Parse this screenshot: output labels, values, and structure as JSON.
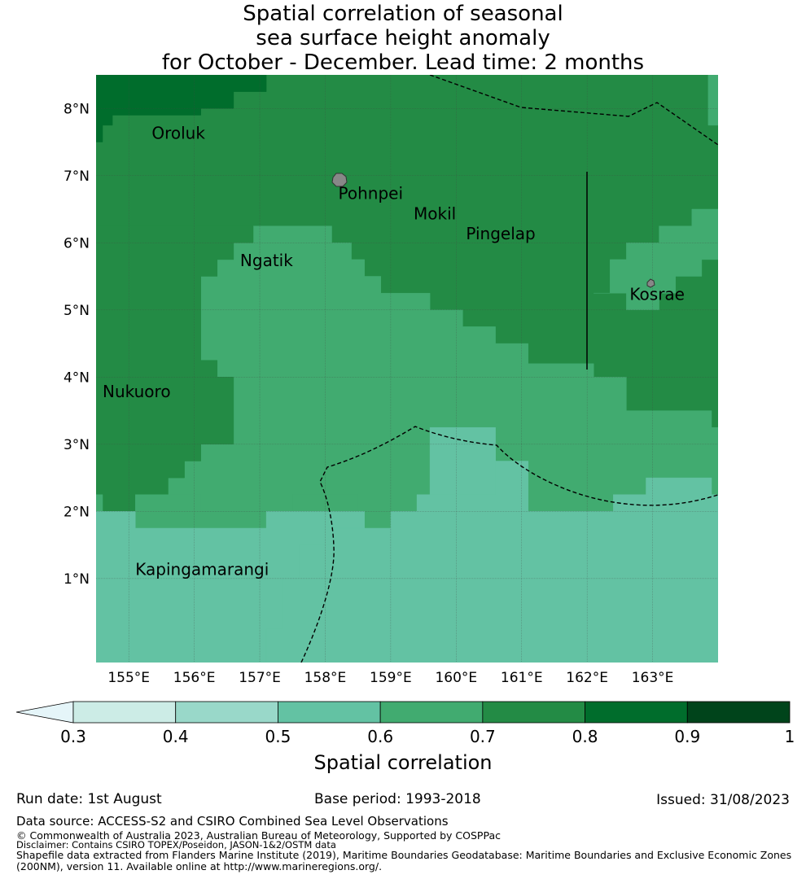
{
  "title": {
    "line1": "Spatial correlation of seasonal",
    "line2": "sea surface height anomaly",
    "line3": "for October - December. Lead time: 2 months"
  },
  "map": {
    "lon_range": [
      154.5,
      164.0
    ],
    "lat_range": [
      -0.25,
      8.5
    ],
    "cell_deg": 0.25,
    "lon_ticks": [
      "155°E",
      "156°E",
      "157°E",
      "158°E",
      "159°E",
      "160°E",
      "161°E",
      "162°E",
      "163°E"
    ],
    "lat_ticks": [
      "1°N",
      "2°N",
      "3°N",
      "4°N",
      "5°N",
      "6°N",
      "7°N",
      "8°N"
    ],
    "places": [
      {
        "name": "Oroluk",
        "lon": 155.35,
        "lat": 7.55
      },
      {
        "name": "Pohnpei",
        "lon": 158.2,
        "lat": 6.65
      },
      {
        "name": "Mokil",
        "lon": 159.35,
        "lat": 6.35
      },
      {
        "name": "Pingelap",
        "lon": 160.15,
        "lat": 6.05
      },
      {
        "name": "Ngatik",
        "lon": 156.7,
        "lat": 5.65
      },
      {
        "name": "Kosrae",
        "lon": 162.65,
        "lat": 5.15
      },
      {
        "name": "Nukuoro",
        "lon": 154.6,
        "lat": 3.7
      },
      {
        "name": "Kapingamarangi",
        "lon": 155.1,
        "lat": 1.05
      }
    ],
    "colors": {
      "bin_0.5_0.6": "#63c2a3",
      "bin_0.6_0.7": "#41ab70",
      "bin_0.7_0.8": "#238b45",
      "bin_0.8_0.9": "#006d2c",
      "island": "#888888",
      "eez_line": "#000000",
      "grid": "#444444"
    }
  },
  "colorbar": {
    "title": "Spatial correlation",
    "tick_labels": [
      "0.3",
      "0.4",
      "0.5",
      "0.6",
      "0.7",
      "0.8",
      "0.9",
      "1"
    ],
    "bins": [
      {
        "from": 0.3,
        "to": 0.4,
        "color": "#ccece6"
      },
      {
        "from": 0.4,
        "to": 0.5,
        "color": "#99d8c9"
      },
      {
        "from": 0.5,
        "to": 0.6,
        "color": "#63c2a3"
      },
      {
        "from": 0.6,
        "to": 0.7,
        "color": "#41ab70"
      },
      {
        "from": 0.7,
        "to": 0.8,
        "color": "#238b45"
      },
      {
        "from": 0.8,
        "to": 0.9,
        "color": "#006d2c"
      },
      {
        "from": 0.9,
        "to": 1.0,
        "color": "#00441b"
      }
    ],
    "under_color": "#e5f5f9"
  },
  "footer": {
    "run_date": "Run date: 1st August",
    "base_period": "Base period: 1993-2018",
    "issued": "Issued: 31/08/2023",
    "data_source": "Data source: ACCESS-S2 and CSIRO Combined Sea Level Observations",
    "copyright": "© Commonwealth of Australia 2023, Australian Bureau of Meteorology, Supported by COSPPac",
    "disclaimer": "Disclaimer: Contains CSIRO TOPEX/Poseidon, JASON-1&2/OSTM data",
    "shapefile_line1": "Shapefile data extracted from Flanders Marine Institute (2019), Maritime Boundaries Geodatabase: Maritime Boundaries and Exclusive Economic Zones",
    "shapefile_line2": "(200NM), version 11. Available online at http://www.marineregions.org/."
  }
}
